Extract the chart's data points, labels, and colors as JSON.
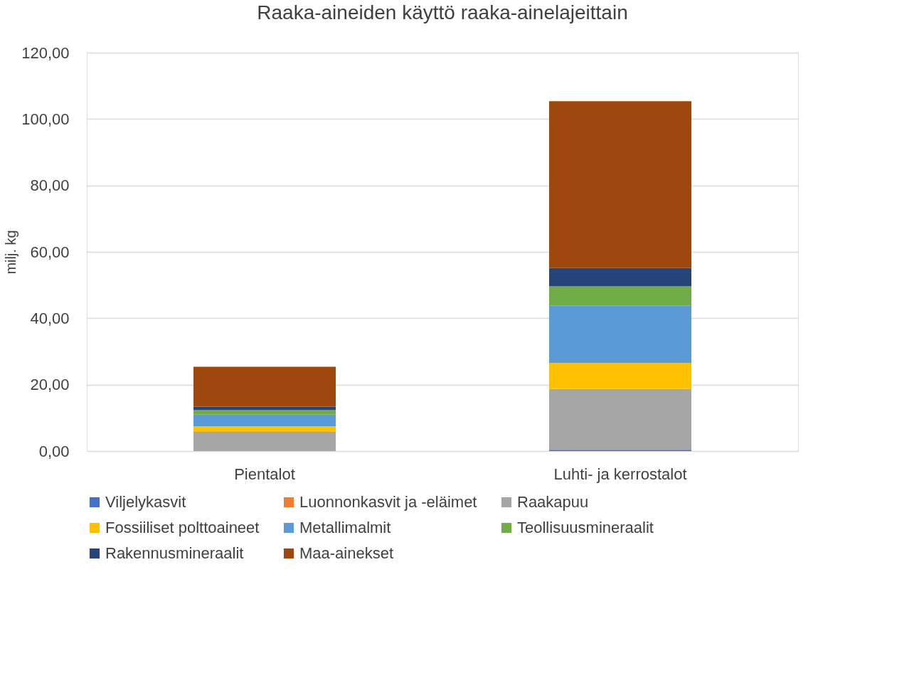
{
  "chart_data": {
    "type": "bar",
    "stacked": true,
    "title": "Raaka-aineiden käyttö raaka-ainelajeittain",
    "ylabel": "milj. kg",
    "categories": [
      "Pientalot",
      "Luhti- ja kerrostalot"
    ],
    "series": [
      {
        "name": "Viljelykasvit",
        "color": "#4472c4",
        "values": [
          null,
          0.4
        ]
      },
      {
        "name": "Luonnonkasvit ja -eläimet",
        "color": "#ed7d31",
        "values": [
          null,
          null
        ]
      },
      {
        "name": "Raakapuu",
        "color": "#a5a5a5",
        "values": [
          5.8,
          18.3
        ]
      },
      {
        "name": "Fossiiliset polttoaineet",
        "color": "#ffc000",
        "values": [
          1.7,
          7.8
        ]
      },
      {
        "name": "Metallimalmit",
        "color": "#5b9bd5",
        "values": [
          3.5,
          17.4
        ]
      },
      {
        "name": "Teollisuusmineraalit",
        "color": "#70ad47",
        "values": [
          1.3,
          5.7
        ]
      },
      {
        "name": "Rakennusmineraalit",
        "color": "#264478",
        "values": [
          1.1,
          5.5
        ]
      },
      {
        "name": "Maa-ainekset",
        "color": "#9e480e",
        "values": [
          12.0,
          50.3
        ]
      }
    ],
    "ylim": [
      0,
      120
    ],
    "yticks": [
      {
        "value": 0,
        "label": "0,00"
      },
      {
        "value": 20,
        "label": "20,00"
      },
      {
        "value": 40,
        "label": "40,00"
      },
      {
        "value": 60,
        "label": "60,00"
      },
      {
        "value": 80,
        "label": "80,00"
      },
      {
        "value": 100,
        "label": "100,00"
      },
      {
        "value": 120,
        "label": "120,00"
      }
    ],
    "grid": "y",
    "legend": "bottom"
  }
}
